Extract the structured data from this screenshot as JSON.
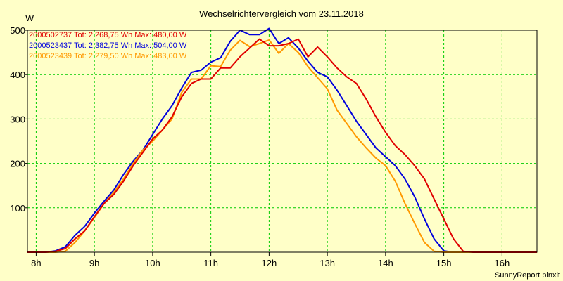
{
  "chart_data": {
    "type": "line",
    "title": "Wechselrichtervergleich vom 23.11.2018",
    "ylabel": "W",
    "footer": "SunnyReport pinxit",
    "xlim": [
      7.85,
      16.6
    ],
    "ylim": [
      0,
      500
    ],
    "yticks": [
      100,
      200,
      300,
      400,
      500
    ],
    "xticks": [
      {
        "value": 8,
        "label": "8h"
      },
      {
        "value": 9,
        "label": "9h"
      },
      {
        "value": 10,
        "label": "10h"
      },
      {
        "value": 11,
        "label": "11h"
      },
      {
        "value": 12,
        "label": "12h"
      },
      {
        "value": 13,
        "label": "13h"
      },
      {
        "value": 14,
        "label": "14h"
      },
      {
        "value": 15,
        "label": "15h"
      },
      {
        "value": 16,
        "label": "16h"
      }
    ],
    "grid": true,
    "legend_position": "top-left",
    "x": [
      7.85,
      8.0,
      8.167,
      8.333,
      8.5,
      8.667,
      8.833,
      9.0,
      9.167,
      9.333,
      9.5,
      9.667,
      9.833,
      10.0,
      10.167,
      10.333,
      10.5,
      10.667,
      10.833,
      11.0,
      11.167,
      11.333,
      11.5,
      11.667,
      11.833,
      12.0,
      12.167,
      12.333,
      12.5,
      12.667,
      12.833,
      13.0,
      13.167,
      13.333,
      13.5,
      13.667,
      13.833,
      14.0,
      14.167,
      14.333,
      14.5,
      14.667,
      14.833,
      15.0,
      15.167,
      15.333,
      15.5,
      15.667,
      15.833,
      16.0,
      16.167,
      16.333,
      16.5,
      16.6
    ],
    "series": [
      {
        "name": "2000502737 Tot: 2.268,75 Wh Max: 480,00 W",
        "color": "#e00000",
        "values": [
          0,
          0,
          0,
          2,
          8,
          30,
          48,
          80,
          110,
          130,
          160,
          195,
          225,
          255,
          275,
          305,
          350,
          380,
          390,
          390,
          415,
          415,
          440,
          460,
          480,
          465,
          465,
          470,
          480,
          440,
          462,
          440,
          415,
          395,
          380,
          345,
          305,
          270,
          240,
          220,
          195,
          165,
          120,
          75,
          30,
          2,
          0,
          0,
          0,
          0,
          0,
          0,
          0,
          0
        ]
      },
      {
        "name": "2000523437 Tot: 2.382,75 Wh Max: 504,00 W",
        "color": "#0000dd",
        "values": [
          0,
          0,
          0,
          3,
          12,
          38,
          58,
          88,
          115,
          140,
          175,
          205,
          230,
          265,
          300,
          330,
          370,
          405,
          410,
          428,
          438,
          475,
          500,
          490,
          490,
          504,
          470,
          483,
          460,
          430,
          405,
          395,
          365,
          330,
          295,
          265,
          235,
          215,
          195,
          165,
          125,
          75,
          30,
          3,
          0,
          0,
          0,
          0,
          0,
          0,
          0,
          0,
          0,
          0
        ]
      },
      {
        "name": "2000523439 Tot: 2.279,50 Wh Max: 483,00 W",
        "color": "#ff9900",
        "values": [
          0,
          0,
          0,
          0,
          2,
          22,
          48,
          78,
          110,
          135,
          165,
          200,
          230,
          250,
          275,
          300,
          360,
          390,
          390,
          420,
          418,
          455,
          477,
          463,
          470,
          478,
          448,
          470,
          450,
          418,
          393,
          368,
          320,
          290,
          260,
          235,
          212,
          195,
          160,
          110,
          65,
          22,
          2,
          0,
          0,
          0,
          0,
          0,
          0,
          0,
          0,
          0,
          0,
          0
        ]
      }
    ]
  }
}
